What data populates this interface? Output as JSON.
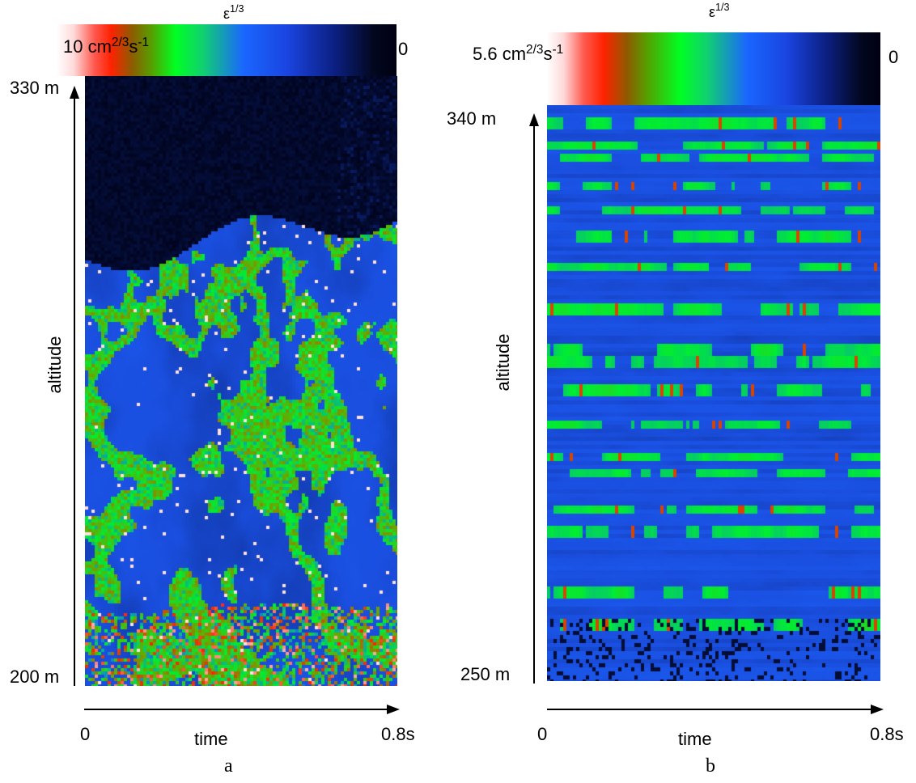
{
  "panels": [
    {
      "letter": "a",
      "colorbar": {
        "title_base": "ε",
        "title_sup": "1/3",
        "max_base": "10 cm",
        "max_sup1": "2/3",
        "max_mid": "s",
        "max_sup2": "-1",
        "min": "0"
      },
      "y_top": "330 m",
      "y_bottom": "200 m",
      "y_label": "altitude",
      "x_left": "0",
      "x_right": "0.8s",
      "x_label": "time"
    },
    {
      "letter": "b",
      "colorbar": {
        "title_base": "ε",
        "title_sup": "1/3",
        "max_base": "5.6 cm",
        "max_sup1": "2/3",
        "max_mid": "s",
        "max_sup2": "-1",
        "min": "0"
      },
      "y_top": "340 m",
      "y_bottom": "250 m",
      "y_label": "altitude",
      "x_left": "0",
      "x_right": "0.8s",
      "x_label": "time"
    }
  ],
  "chart_data": [
    {
      "type": "heatmap",
      "title": "",
      "xlabel": "time",
      "ylabel": "altitude",
      "xlim": [
        0,
        0.8
      ],
      "x_unit": "s",
      "ylim": [
        200,
        330
      ],
      "y_unit": "m",
      "colorbar_label": "ε^1/3",
      "colorbar_range": [
        0,
        10
      ],
      "colorbar_unit": "cm^2/3 s^-1",
      "colormap": [
        "#000011",
        "#0a1f6a",
        "#1a4fe0",
        "#1a66ff",
        "#00ee33",
        "#66aa00",
        "#ff2200",
        "#ffffff"
      ]
    },
    {
      "type": "heatmap",
      "title": "",
      "xlabel": "time",
      "ylabel": "altitude",
      "xlim": [
        0,
        0.8
      ],
      "x_unit": "s",
      "ylim": [
        250,
        340
      ],
      "y_unit": "m",
      "colorbar_label": "ε^1/3",
      "colorbar_range": [
        0,
        5.6
      ],
      "colorbar_unit": "cm^2/3 s^-1",
      "colormap": [
        "#000011",
        "#0a1f6a",
        "#1a4fe0",
        "#1a66ff",
        "#00ee33",
        "#66aa00",
        "#ff2200",
        "#ffffff"
      ]
    }
  ]
}
